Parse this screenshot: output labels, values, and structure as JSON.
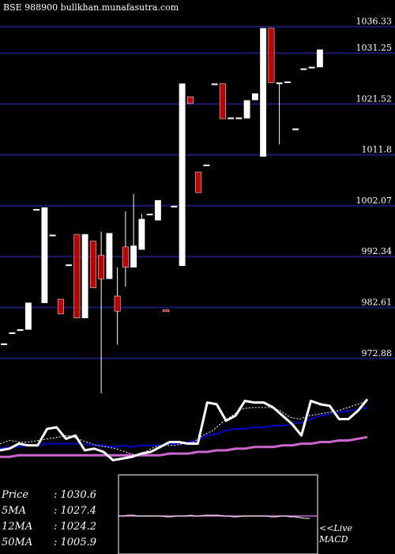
{
  "header": {
    "exchange": "BSE",
    "code": "988900",
    "site": "bullkhan.munafasutra.com"
  },
  "chart_data": {
    "type": "candlestick",
    "y_ticks": [
      "1036.33",
      "1031.25",
      "1021.52",
      "1011.8",
      "1002.07",
      "992.34",
      "982.61",
      "972.88"
    ],
    "ylim": [
      967.4,
      1040.2
    ],
    "candles": [
      {
        "o": 975.7,
        "h": 975.7,
        "l": 975.7,
        "c": 975.7
      },
      {
        "o": 977.8,
        "h": 977.8,
        "l": 977.8,
        "c": 977.8
      },
      {
        "o": 978.4,
        "h": 978.4,
        "l": 978.4,
        "c": 978.4
      },
      {
        "o": 978.4,
        "h": 983.5,
        "l": 978.4,
        "c": 983.5
      },
      {
        "o": 1001.4,
        "h": 1001.4,
        "l": 1001.4,
        "c": 1001.4
      },
      {
        "o": 983.5,
        "h": 1001.7,
        "l": 983.5,
        "c": 1001.7
      },
      {
        "o": 996.5,
        "h": 996.5,
        "l": 996.5,
        "c": 996.5
      },
      {
        "o": 984.2,
        "h": 984.2,
        "l": 981.4,
        "c": 981.4
      },
      {
        "o": 990.8,
        "h": 990.8,
        "l": 990.8,
        "c": 990.8
      },
      {
        "o": 996.6,
        "h": 996.6,
        "l": 980.6,
        "c": 980.6
      },
      {
        "o": 980.6,
        "h": 996.6,
        "l": 980.6,
        "c": 996.6
      },
      {
        "o": 995.3,
        "h": 995.3,
        "l": 986.4,
        "c": 986.4
      },
      {
        "o": 992.6,
        "h": 997.1,
        "l": 966.2,
        "c": 988.1
      },
      {
        "o": 988.1,
        "h": 996.8,
        "l": 988.1,
        "c": 996.8
      },
      {
        "o": 984.8,
        "h": 990.3,
        "l": 975.5,
        "c": 981.9
      },
      {
        "o": 994.2,
        "h": 1001.0,
        "l": 986.6,
        "c": 990.3
      },
      {
        "o": 990.3,
        "h": 1004.3,
        "l": 990.3,
        "c": 994.4
      },
      {
        "o": 993.7,
        "h": 1000.5,
        "l": 993.7,
        "c": 999.5
      },
      {
        "o": 1000.5,
        "h": 1000.5,
        "l": 1000.5,
        "c": 1000.5
      },
      {
        "o": 999.3,
        "h": 1003.1,
        "l": 999.3,
        "c": 1003.1
      },
      {
        "o": 982.2,
        "h": 982.2,
        "l": 981.8,
        "c": 981.8
      },
      {
        "o": 1002.0,
        "h": 1002.0,
        "l": 1002.0,
        "c": 1002.0
      },
      {
        "o": 990.6,
        "h": 1025.4,
        "l": 990.6,
        "c": 1025.4
      },
      {
        "o": 1022.9,
        "h": 1022.9,
        "l": 1021.6,
        "c": 1021.6
      },
      {
        "o": 1008.5,
        "h": 1008.5,
        "l": 1004.6,
        "c": 1004.6
      },
      {
        "o": 1009.9,
        "h": 1009.9,
        "l": 1009.9,
        "c": 1009.9
      },
      {
        "o": 1025.4,
        "h": 1025.4,
        "l": 1025.4,
        "c": 1025.4
      },
      {
        "o": 1025.4,
        "h": 1025.4,
        "l": 1018.7,
        "c": 1018.7
      },
      {
        "o": 1018.9,
        "h": 1018.9,
        "l": 1018.9,
        "c": 1018.9
      },
      {
        "o": 1018.9,
        "h": 1018.9,
        "l": 1018.9,
        "c": 1018.9
      },
      {
        "o": 1018.8,
        "h": 1022.2,
        "l": 1018.8,
        "c": 1022.2
      },
      {
        "o": 1022.3,
        "h": 1023.5,
        "l": 1022.3,
        "c": 1023.5
      },
      {
        "o": 1011.5,
        "h": 1036.0,
        "l": 1011.5,
        "c": 1036.0
      },
      {
        "o": 1036.0,
        "h": 1036.0,
        "l": 1025.6,
        "c": 1025.6
      },
      {
        "o": 1025.6,
        "h": 1025.6,
        "l": 1013.8,
        "c": 1025.6
      },
      {
        "o": 1025.8,
        "h": 1025.8,
        "l": 1025.8,
        "c": 1025.8
      },
      {
        "o": 1016.8,
        "h": 1016.8,
        "l": 1016.8,
        "c": 1016.8
      },
      {
        "o": 1028.3,
        "h": 1028.3,
        "l": 1028.3,
        "c": 1028.3
      },
      {
        "o": 1028.6,
        "h": 1028.6,
        "l": 1028.6,
        "c": 1028.6
      },
      {
        "o": 1028.6,
        "h": 1031.9,
        "l": 1028.6,
        "c": 1031.9
      }
    ],
    "moving_averages": {
      "price": [
        37,
        36,
        33,
        34,
        34,
        24,
        23,
        30,
        28,
        37,
        36,
        38,
        43,
        42,
        41,
        39,
        38,
        35,
        32,
        32,
        33,
        33,
        8,
        9,
        19,
        16,
        7,
        8,
        8,
        11,
        16,
        21,
        28,
        7,
        9,
        10,
        18,
        18,
        13,
        6
      ],
      "ma5": [
        33,
        31,
        32,
        32,
        31,
        30,
        29,
        28,
        30,
        32,
        34,
        35,
        36,
        38,
        40,
        38,
        35,
        34,
        34,
        33,
        32,
        28,
        25,
        20,
        16,
        12,
        11,
        11,
        11,
        13,
        17,
        18,
        16,
        15,
        14,
        13,
        11,
        9,
        7
      ],
      "ma12": [
        36,
        35,
        35,
        34,
        34,
        33,
        33,
        33,
        33,
        33,
        34,
        34,
        35,
        34,
        35,
        34,
        34,
        34,
        33,
        33,
        32,
        31,
        28,
        27,
        25,
        24,
        24,
        23,
        23,
        22,
        22,
        21,
        20,
        18,
        16,
        15,
        14,
        13,
        12,
        11
      ],
      "ma50": [
        41,
        41,
        40,
        40,
        40,
        40,
        40,
        40,
        40,
        40,
        40,
        40,
        40,
        40,
        40,
        40,
        40,
        40,
        39,
        39,
        39,
        38,
        38,
        37,
        37,
        36,
        36,
        35,
        35,
        35,
        34,
        34,
        33,
        33,
        32,
        32,
        31,
        31,
        30,
        29
      ]
    },
    "macd": [
      92,
      92,
      91,
      91,
      92,
      92,
      92,
      92,
      92,
      92,
      93,
      93,
      92,
      92,
      92,
      91,
      92,
      92,
      91,
      91,
      91,
      91,
      92,
      92,
      93,
      93,
      92,
      92,
      92,
      92,
      92,
      92,
      93,
      93,
      92,
      92,
      93,
      93,
      94,
      95,
      95
    ],
    "macd_signal": 92,
    "colors": {
      "background": "#000000",
      "grid": "#1a1a6e",
      "up": "#ffffff",
      "down": "#c00000",
      "price": "#ffffff",
      "ma5": "#ffffff",
      "ma12": "#0000cc",
      "ma50": "#cc66cc",
      "macd": "#ffffff",
      "macd_signal": "#cc66cc"
    }
  },
  "info": [
    {
      "label": "Price",
      "value": ": 1030.6"
    },
    {
      "label": "5MA",
      "value": ": 1027.4"
    },
    {
      "label": "12MA",
      "value": ": 1024.2"
    },
    {
      "label": "50MA",
      "value": ": 1005.9"
    }
  ],
  "macd_panel": {
    "line1": "<<Live",
    "line2": "MACD"
  }
}
